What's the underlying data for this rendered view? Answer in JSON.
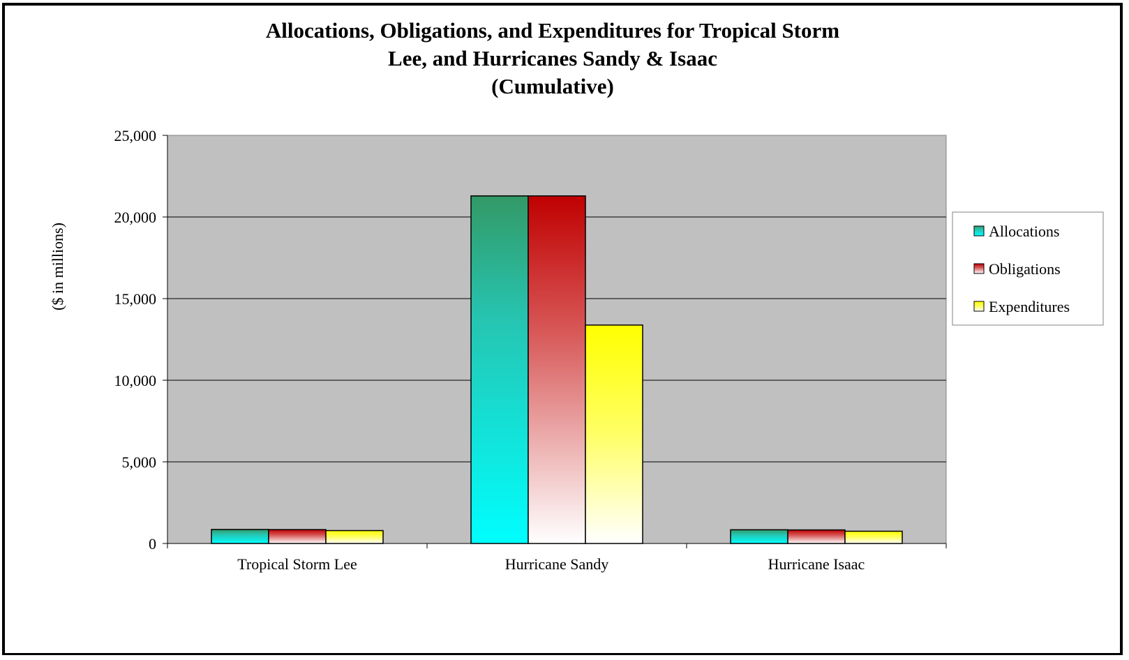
{
  "chart_data": {
    "type": "bar",
    "title_lines": [
      "Allocations, Obligations, and Expenditures for Tropical Storm",
      "Lee, and Hurricanes Sandy & Isaac",
      "(Cumulative)"
    ],
    "xlabel": "",
    "ylabel": "($ in millions)",
    "ylim": [
      0,
      25000
    ],
    "yticks": [
      0,
      5000,
      10000,
      15000,
      20000,
      25000
    ],
    "ytick_labels": [
      "0",
      "5,000",
      "10,000",
      "15,000",
      "20,000",
      "25,000"
    ],
    "categories": [
      "Tropical Storm Lee",
      "Hurricane Sandy",
      "Hurricane Isaac"
    ],
    "series": [
      {
        "name": "Allocations",
        "values": [
          860,
          21290,
          840
        ]
      },
      {
        "name": "Obligations",
        "values": [
          850,
          21290,
          830
        ]
      },
      {
        "name": "Expenditures",
        "values": [
          790,
          13380,
          750
        ]
      }
    ],
    "grid": true,
    "legend_position": "right",
    "colors": {
      "plot_background": "#c0c0c0",
      "allocations_top": "#339966",
      "allocations_bottom": "#00ffff",
      "obligations_top": "#c00000",
      "obligations_bottom": "#ffffff",
      "expenditures_top": "#ffff00",
      "expenditures_bottom": "#ffffff"
    }
  }
}
